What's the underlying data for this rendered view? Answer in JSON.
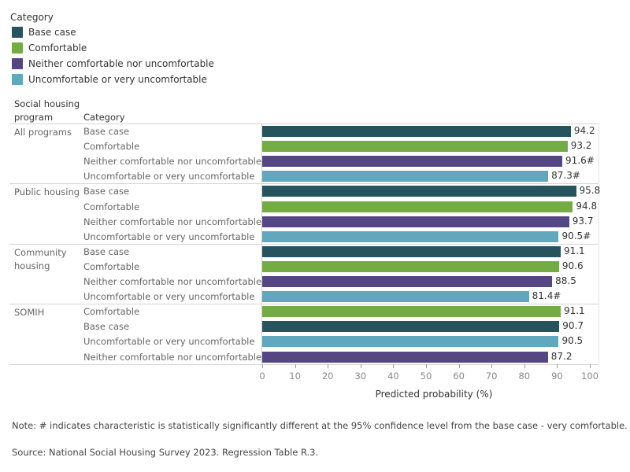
{
  "chart_data": {
    "type": "bar",
    "orientation": "horizontal",
    "legend": {
      "title": "Category",
      "placement": "top-left",
      "items": [
        {
          "label": "Base case",
          "color": "#27535f"
        },
        {
          "label": "Comfortable",
          "color": "#73ab45"
        },
        {
          "label": "Neither comfortable nor uncomfortable",
          "color": "#544583"
        },
        {
          "label": "Uncomfortable or very uncomfortable",
          "color": "#61a7bd"
        }
      ]
    },
    "row_headers": {
      "program": "Social housing program",
      "category": "Category"
    },
    "groups": [
      {
        "program": "All programs",
        "rows": [
          {
            "category": "Base case",
            "value": 94.2,
            "label": "94.2"
          },
          {
            "category": "Comfortable",
            "value": 93.2,
            "label": "93.2"
          },
          {
            "category": "Neither comfortable nor uncomfortable",
            "value": 91.6,
            "label": "91.6#"
          },
          {
            "category": "Uncomfortable or very uncomfortable",
            "value": 87.3,
            "label": "87.3#"
          }
        ]
      },
      {
        "program": "Public housing",
        "rows": [
          {
            "category": "Base case",
            "value": 95.8,
            "label": "95.8"
          },
          {
            "category": "Comfortable",
            "value": 94.8,
            "label": "94.8"
          },
          {
            "category": "Neither comfortable nor uncomfortable",
            "value": 93.7,
            "label": "93.7"
          },
          {
            "category": "Uncomfortable or very uncomfortable",
            "value": 90.5,
            "label": "90.5#"
          }
        ]
      },
      {
        "program": "Community housing",
        "rows": [
          {
            "category": "Base case",
            "value": 91.1,
            "label": "91.1"
          },
          {
            "category": "Comfortable",
            "value": 90.6,
            "label": "90.6"
          },
          {
            "category": "Neither comfortable nor uncomfortable",
            "value": 88.5,
            "label": "88.5"
          },
          {
            "category": "Uncomfortable or very uncomfortable",
            "value": 81.4,
            "label": "81.4#"
          }
        ]
      },
      {
        "program": "SOMIH",
        "rows": [
          {
            "category": "Comfortable",
            "value": 91.1,
            "label": "91.1"
          },
          {
            "category": "Base case",
            "value": 90.7,
            "label": "90.7"
          },
          {
            "category": "Uncomfortable or very uncomfortable",
            "value": 90.5,
            "label": "90.5"
          },
          {
            "category": "Neither comfortable nor uncomfortable",
            "value": 87.2,
            "label": "87.2"
          }
        ]
      }
    ],
    "xlabel": "Predicted probability (%)",
    "xlim": [
      0,
      100
    ],
    "xticks": [
      0,
      10,
      20,
      30,
      40,
      50,
      60,
      70,
      80,
      90,
      100
    ],
    "grid": false
  },
  "notes": {
    "note": "Note: # indicates characteristic is statistically significantly different at the 95% confidence level from the base case - very comfortable.",
    "source": "Source: National Social Housing Survey 2023. Regression Table R.3."
  }
}
